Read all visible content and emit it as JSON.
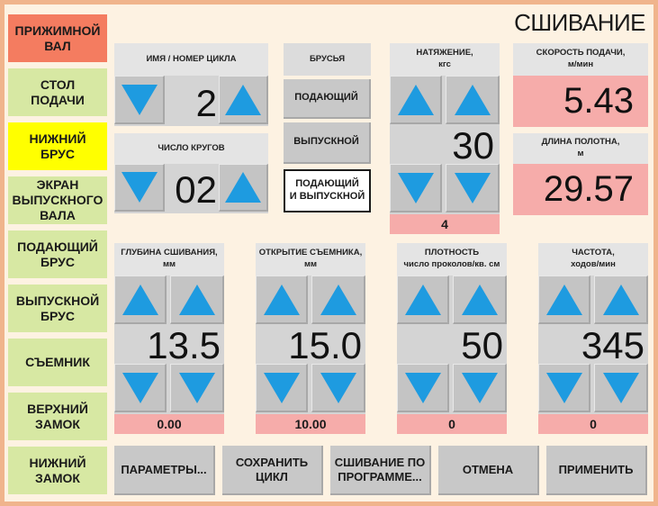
{
  "title": "СШИВАНИЕ",
  "sidebar": {
    "items": [
      {
        "label": "ПРИЖИМНОЙ\nВАЛ",
        "state": "active-red"
      },
      {
        "label": "СТОЛ\nПОДАЧИ",
        "state": ""
      },
      {
        "label": "НИЖНИЙ\nБРУС",
        "state": "active-yellow"
      },
      {
        "label": "ЭКРАН\nВЫПУСКНОГО\nВАЛА",
        "state": ""
      },
      {
        "label": "ПОДАЮЩИЙ\nБРУС",
        "state": ""
      },
      {
        "label": "ВЫПУСКНОЙ\nБРУС",
        "state": ""
      },
      {
        "label": "СЪЕМНИК",
        "state": ""
      },
      {
        "label": "ВЕРХНИЙ\nЗАМОК",
        "state": ""
      },
      {
        "label": "НИЖНИЙ\nЗАМОК",
        "state": ""
      }
    ]
  },
  "cycle": {
    "label": "ИМЯ / НОМЕР ЦИКЛА",
    "value": "2"
  },
  "rounds": {
    "label": "ЧИСЛО КРУГОВ",
    "value": "02"
  },
  "bars": {
    "label": "БРУСЬЯ",
    "options": [
      "ПОДАЮЩИЙ",
      "ВЫПУСКНОЙ",
      "ПОДАЮЩИЙ\nИ ВЫПУСКНОЙ"
    ],
    "selected_index": 2
  },
  "tension": {
    "label": "НАТЯЖЕНИЕ,\nкгс",
    "value": "30",
    "actual": "4"
  },
  "feed_speed": {
    "label": "СКОРОСТЬ ПОДАЧИ,\nм/мин",
    "value": "5.43"
  },
  "web_length": {
    "label": "ДЛИНА ПОЛОТНА,\nм",
    "value": "29.57"
  },
  "sew_depth": {
    "label": "ГЛУБИНА СШИВАНИЯ,\nмм",
    "value": "13.5",
    "actual": "0.00"
  },
  "stripper_open": {
    "label": "ОТКРЫТИЕ СЪЕМНИКА,\nмм",
    "value": "15.0",
    "actual": "10.00"
  },
  "density": {
    "label": "ПЛОТНОСТЬ\nчисло проколов/кв. см",
    "value": "50",
    "actual": "0"
  },
  "frequency": {
    "label": "ЧАСТОТА,\nходов/мин",
    "value": "345",
    "actual": "0"
  },
  "bottom": {
    "params": "ПАРАМЕТРЫ...",
    "save_cycle": "СОХРАНИТЬ\nЦИКЛ",
    "program_sew": "СШИВАНИЕ ПО\nПРОГРАММЕ...",
    "cancel": "ОТМЕНА",
    "apply": "ПРИМЕНИТЬ"
  },
  "colors": {
    "frame": "#f0b48c",
    "background": "#fdf2e2",
    "sidebar_default": "#d7e8a3",
    "sidebar_active_red": "#f47c60",
    "sidebar_active_yellow": "#ffff00",
    "arrow": "#1e9be0",
    "readout_pink": "#f6acaa",
    "button_gray": "#c8c8c8"
  }
}
